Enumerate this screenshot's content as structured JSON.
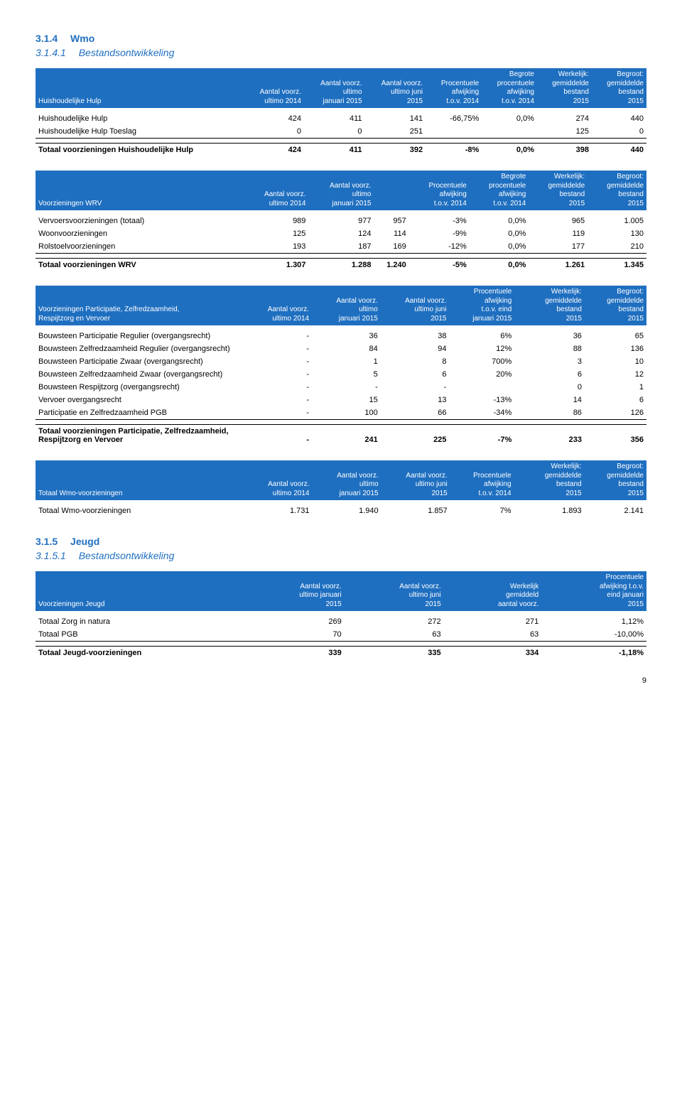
{
  "sec314": {
    "num": "3.1.4",
    "title": "Wmo"
  },
  "sec3141": {
    "num": "3.1.4.1",
    "title": "Bestandsontwikkeling"
  },
  "sec315": {
    "num": "3.1.5",
    "title": "Jeugd"
  },
  "sec3151": {
    "num": "3.1.5.1",
    "title": "Bestandsontwikkeling"
  },
  "pageNum": "9",
  "hdr": {
    "ult2014": "Aantal voorz.\nultimo 2014",
    "jan2015": "Aantal voorz.\nultimo\njanuari 2015",
    "jun2015": "Aantal voorz.\nultimo juni\n2015",
    "proc2014": "Procentuele\nafwijking\nt.o.v. 2014",
    "begrote": "Begrote\nprocentuele\nafwijking\nt.o.v. 2014",
    "werkelijk": "Werkelijk:\ngemiddelde\nbestand\n2015",
    "begroot": "Begroot:\ngemiddelde\nbestand\n2015",
    "procEindJan": "Procentuele\nafwijking\nt.o.v. eind\njanuari 2015"
  },
  "t1": {
    "title": "Huishoudelijke Hulp",
    "rows": [
      {
        "label": "Huishoudelijke Hulp",
        "c": [
          "424",
          "411",
          "141",
          "-66,75%",
          "0,0%",
          "274",
          "440"
        ]
      },
      {
        "label": "Huishoudelijke Hulp Toeslag",
        "c": [
          "0",
          "0",
          "251",
          "",
          "",
          "125",
          "0"
        ]
      }
    ],
    "totalLabel": "Totaal voorzieningen Huishoudelijke Hulp",
    "totalC": [
      "424",
      "411",
      "392",
      "-8%",
      "0,0%",
      "398",
      "440"
    ]
  },
  "t2": {
    "title": "Voorzieningen WRV",
    "rows": [
      {
        "label": "Vervoersvoorzieningen (totaal)",
        "c": [
          "989",
          "977",
          "957",
          "-3%",
          "0,0%",
          "965",
          "1.005"
        ]
      },
      {
        "label": "Woonvoorzieningen",
        "c": [
          "125",
          "124",
          "114",
          "-9%",
          "0,0%",
          "119",
          "130"
        ]
      },
      {
        "label": "Rolstoelvoorzieningen",
        "c": [
          "193",
          "187",
          "169",
          "-12%",
          "0,0%",
          "177",
          "210"
        ]
      }
    ],
    "totalLabel": "Totaal voorzieningen WRV",
    "totalC": [
      "1.307",
      "1.288",
      "1.240",
      "-5%",
      "0,0%",
      "1.261",
      "1.345"
    ]
  },
  "t3": {
    "title": "Voorzieningen Participatie, Zelfredzaamheid,\nRespijtzorg en Vervoer",
    "rows": [
      {
        "label": "Bouwsteen Participatie Regulier (overgangsrecht)",
        "c": [
          "-",
          "36",
          "38",
          "6%",
          "",
          "36",
          "65"
        ]
      },
      {
        "label": "Bouwsteen Zelfredzaamheid Regulier (overgangsrecht)",
        "c": [
          "-",
          "84",
          "94",
          "12%",
          "",
          "88",
          "136"
        ]
      },
      {
        "label": "Bouwsteen Participatie Zwaar (overgangsrecht)",
        "c": [
          "-",
          "1",
          "8",
          "700%",
          "",
          "3",
          "10"
        ]
      },
      {
        "label": "Bouwsteen Zelfredzaamheid Zwaar (overgangsrecht)",
        "c": [
          "-",
          "5",
          "6",
          "20%",
          "",
          "6",
          "12"
        ]
      },
      {
        "label": "Bouwsteen Respijtzorg (overgangsrecht)",
        "c": [
          "-",
          "-",
          "-",
          "",
          "",
          "0",
          "1"
        ]
      },
      {
        "label": "Vervoer overgangsrecht",
        "c": [
          "-",
          "15",
          "13",
          "-13%",
          "",
          "14",
          "6"
        ]
      },
      {
        "label": "Participatie en Zelfredzaamheid PGB",
        "c": [
          "-",
          "100",
          "66",
          "-34%",
          "",
          "86",
          "126"
        ]
      }
    ],
    "totalLabel": "Totaal voorzieningen Participatie, Zelfredzaamheid,\nRespijtzorg en Vervoer",
    "totalC": [
      "-",
      "241",
      "225",
      "-7%",
      "",
      "233",
      "356"
    ]
  },
  "t4": {
    "title": "Totaal Wmo-voorzieningen",
    "rowLabel": "Totaal Wmo-voorzieningen",
    "rowC": [
      "1.731",
      "1.940",
      "1.857",
      "7%",
      "",
      "1.893",
      "2.141"
    ]
  },
  "t5": {
    "title": "Voorzieningen Jeugd",
    "h": {
      "jan2015": "Aantal voorz.\nultimo januari\n2015",
      "jun2015": "Aantal voorz.\nultimo juni\n2015",
      "werk": "Werkelijk\ngemiddeld\naantal voorz.",
      "proc": "Procentuele\nafwijking t.o.v.\neind januari\n2015"
    },
    "rows": [
      {
        "label": "Totaal Zorg in natura",
        "c": [
          "269",
          "272",
          "271",
          "1,12%"
        ]
      },
      {
        "label": "Totaal PGB",
        "c": [
          "70",
          "63",
          "63",
          "-10,00%"
        ]
      }
    ],
    "totalLabel": "Totaal Jeugd-voorzieningen",
    "totalC": [
      "339",
      "335",
      "334",
      "-1,18%"
    ]
  }
}
